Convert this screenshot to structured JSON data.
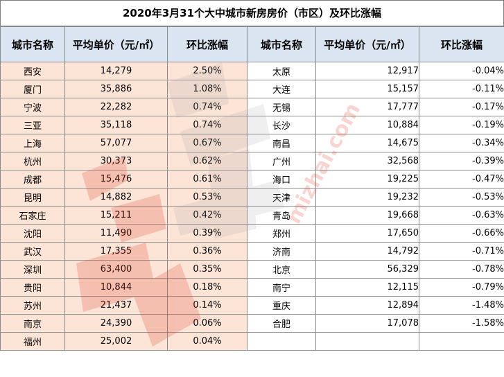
{
  "title": "2020年3月31个大中城市新房房价（市区）及环比涨幅",
  "headers": [
    "城市名称",
    "平均单价（元/㎡）",
    "环比涨幅",
    "城市名称",
    "平均单价（元/㎡）",
    "环比涨幅"
  ],
  "left_rows": [
    {
      "city": "西安",
      "price": "14,279",
      "change": "2.50%"
    },
    {
      "city": "厦门",
      "price": "35,886",
      "change": "1.08%"
    },
    {
      "city": "宁波",
      "price": "22,282",
      "change": "0.74%"
    },
    {
      "city": "三亚",
      "price": "35,118",
      "change": "0.74%"
    },
    {
      "city": "上海",
      "price": "57,077",
      "change": "0.67%"
    },
    {
      "city": "杭州",
      "price": "30,373",
      "change": "0.62%"
    },
    {
      "city": "成都",
      "price": "15,476",
      "change": "0.61%"
    },
    {
      "city": "昆明",
      "price": "14,882",
      "change": "0.53%"
    },
    {
      "city": "石家庄",
      "price": "15,211",
      "change": "0.42%"
    },
    {
      "city": "沈阳",
      "price": "11,490",
      "change": "0.39%"
    },
    {
      "city": "武汉",
      "price": "17,355",
      "change": "0.36%"
    },
    {
      "city": "深圳",
      "price": "63,400",
      "change": "0.35%"
    },
    {
      "city": "贵阳",
      "price": "10,844",
      "change": "0.18%"
    },
    {
      "city": "苏州",
      "price": "21,437",
      "change": "0.14%"
    },
    {
      "city": "南京",
      "price": "24,390",
      "change": "0.06%"
    },
    {
      "city": "福州",
      "price": "25,002",
      "change": "0.04%"
    }
  ],
  "right_rows": [
    {
      "city": "太原",
      "price": "12,917",
      "change": "-0.04%"
    },
    {
      "city": "大连",
      "price": "15,157",
      "change": "-0.11%"
    },
    {
      "city": "无锡",
      "price": "17,777",
      "change": "-0.17%"
    },
    {
      "city": "长沙",
      "price": "10,884",
      "change": "-0.19%"
    },
    {
      "city": "南昌",
      "price": "14,675",
      "change": "-0.34%"
    },
    {
      "city": "广州",
      "price": "32,568",
      "change": "-0.39%"
    },
    {
      "city": "海口",
      "price": "19,225",
      "change": "-0.47%"
    },
    {
      "city": "天津",
      "price": "19,232",
      "change": "-0.53%"
    },
    {
      "city": "青岛",
      "price": "19,668",
      "change": "-0.63%"
    },
    {
      "city": "郑州",
      "price": "17,650",
      "change": "-0.66%"
    },
    {
      "city": "济南",
      "price": "14,792",
      "change": "-0.71%"
    },
    {
      "city": "北京",
      "price": "56,329",
      "change": "-0.78%"
    },
    {
      "city": "南宁",
      "price": "12,115",
      "change": "-0.79%"
    },
    {
      "city": "重庆",
      "price": "12,894",
      "change": "-1.48%"
    },
    {
      "city": "合肥",
      "price": "17,078",
      "change": "-1.58%"
    }
  ],
  "watermark": {
    "text": "mizhai.com",
    "logo_glyphs": "米宅"
  },
  "colors": {
    "header_bg": "#dbe5f1",
    "rise_bg": "#fce4d6",
    "border": "#8c8c8c"
  }
}
